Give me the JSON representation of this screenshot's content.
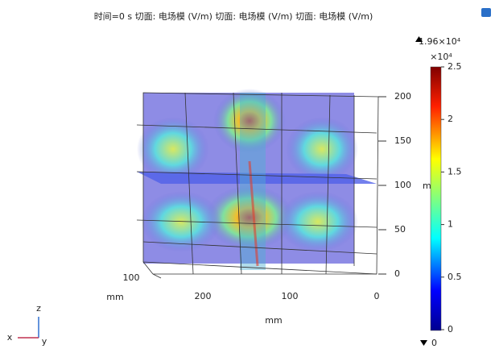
{
  "header": {
    "title": "时间=0 s   切面: 电场模 (V/m)  切面: 电场模 (V/m)  切面: 电场模 (V/m)"
  },
  "colorbar": {
    "max_label": "1.96×10⁴",
    "min_label": "0",
    "multiplier": "×10⁴",
    "range": [
      0,
      2.5
    ],
    "ticks": [
      0,
      0.5,
      1,
      1.5,
      2,
      2.5
    ]
  },
  "z_axis": {
    "ticks": [
      "200",
      "150",
      "100",
      "50",
      "0"
    ],
    "unit": "m"
  },
  "x_axis": {
    "ticks": [
      "200",
      "100",
      "0"
    ],
    "unit": "mm"
  },
  "y_axis": {
    "ticks": [
      "100"
    ],
    "unit": "mm"
  },
  "triad": {
    "z": "z",
    "x": "x",
    "y": "y"
  }
}
